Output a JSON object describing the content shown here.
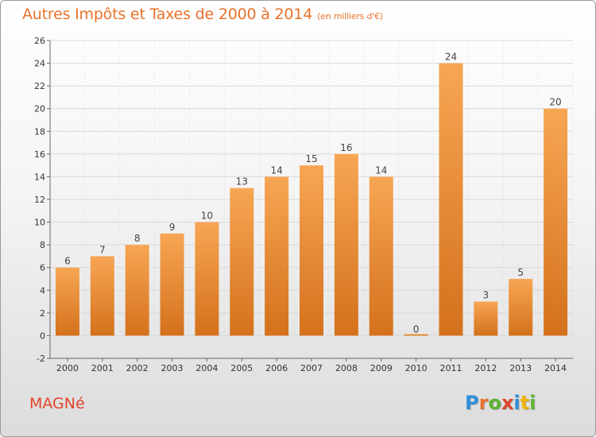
{
  "title": "Autres Impôts et Taxes de 2000 à 2014",
  "title_unit": "(en milliers d'€)",
  "commune": "MAGNé",
  "logo": {
    "text": "Proxiti",
    "letter_colors": [
      "#2f8fd8",
      "#e8722a",
      "#5cb531",
      "#e0442b",
      "#2f8fd8",
      "#f0b400",
      "#5cb531"
    ]
  },
  "colors": {
    "bar_light": "#f7a654",
    "bar_dark": "#d4711c",
    "grid": "#d9d9d9",
    "axis": "#666666"
  },
  "chart_data": {
    "type": "bar",
    "categories": [
      "2000",
      "2001",
      "2002",
      "2003",
      "2004",
      "2005",
      "2006",
      "2007",
      "2008",
      "2009",
      "2010",
      "2011",
      "2012",
      "2013",
      "2014"
    ],
    "values": [
      6,
      7,
      8,
      9,
      10,
      13,
      14,
      15,
      16,
      14,
      0,
      24,
      3,
      5,
      20
    ],
    "data_labels": [
      "6",
      "7",
      "8",
      "9",
      "10",
      "13",
      "14",
      "15",
      "16",
      "14",
      "0",
      "24",
      "3",
      "5",
      "20"
    ],
    "yticks": [
      -2,
      0,
      2,
      4,
      6,
      8,
      10,
      12,
      14,
      16,
      18,
      20,
      22,
      24,
      26
    ],
    "ytick_labels": [
      "-2",
      "0",
      "2",
      "4",
      "6",
      "8",
      "10",
      "12",
      "14",
      "16",
      "18",
      "20",
      "22",
      "24",
      "26"
    ],
    "ylim": [
      -2,
      26
    ],
    "grid": true
  }
}
